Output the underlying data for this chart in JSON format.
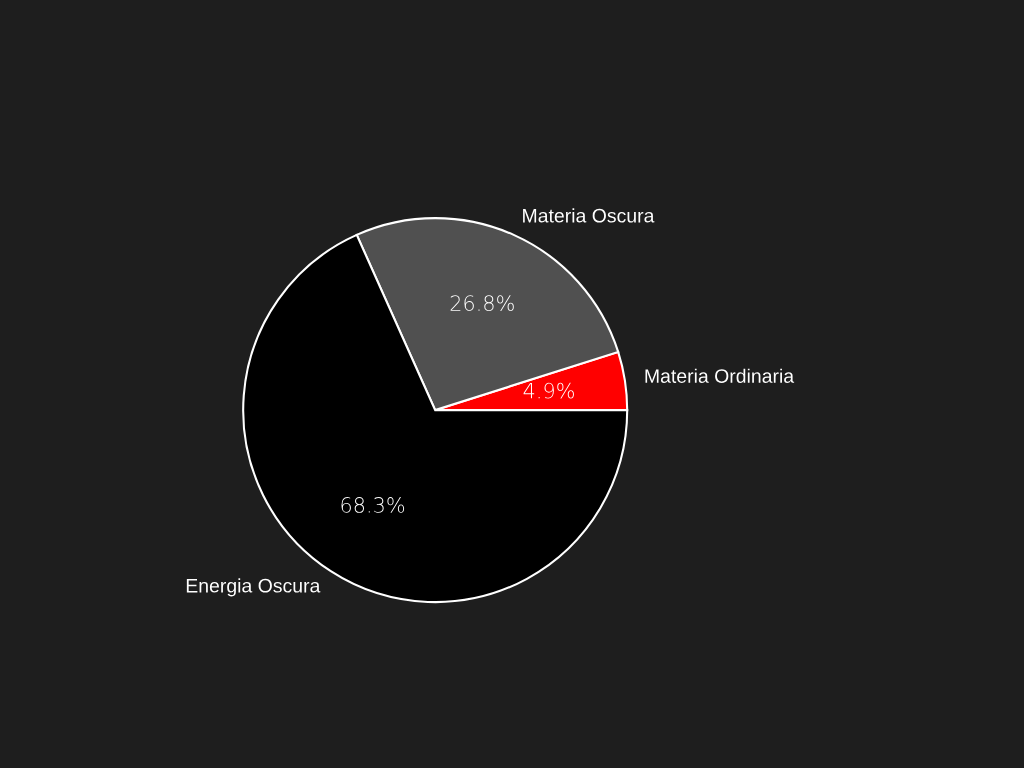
{
  "chart_data": {
    "type": "pie",
    "categories": [
      "Materia Ordinaria",
      "Materia Oscura",
      "Energia Oscura"
    ],
    "values": [
      4.9,
      26.8,
      68.3
    ],
    "colors": [
      "#ff0000",
      "#505050",
      "#000000"
    ],
    "value_labels": [
      "4.9%",
      "26.8%",
      "68.3%"
    ]
  }
}
